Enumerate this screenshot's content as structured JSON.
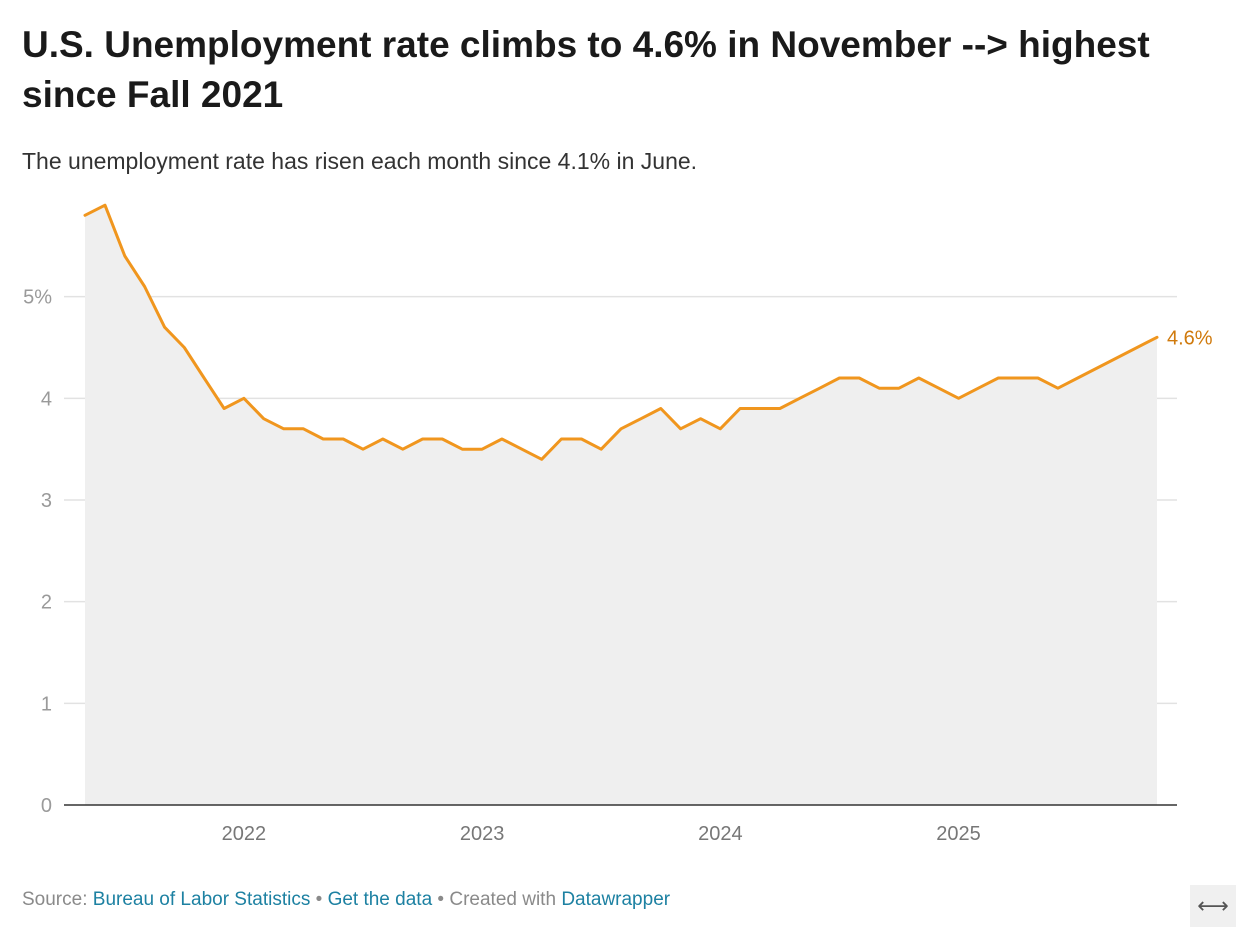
{
  "header": {
    "title": "U.S. Unemployment rate climbs to 4.6% in November --> highest since Fall 2021",
    "subtitle": "The unemployment rate has risen each month since 4.1% in June."
  },
  "footer": {
    "source_label": "Source:",
    "source_link": "Bureau of Labor Statistics",
    "separator_1": "•",
    "data_link": "Get the data",
    "separator_2": "•",
    "created_label": "Created with",
    "tool_link": "Datawrapper",
    "expand_glyph": "⟷"
  },
  "colors": {
    "line": "#f0961e",
    "area": "#efefef",
    "grid": "#e2e2e2",
    "label_text": "#d07a0c",
    "tick_text": "#9a9a9a",
    "axis": "#333333"
  },
  "chart_data": {
    "type": "area",
    "title": "U.S. Unemployment rate climbs to 4.6% in November --> highest since Fall 2021",
    "subtitle": "The unemployment rate has risen each month since 4.1% in June.",
    "xlabel": "",
    "ylabel": "",
    "ylim": [
      0,
      6
    ],
    "xlim": [
      2021.333,
      2025.833
    ],
    "yticks": [
      0,
      1,
      2,
      3,
      4,
      5
    ],
    "ytick_labels": [
      "0",
      "1",
      "2",
      "3",
      "4",
      "5%"
    ],
    "xticks": [
      2022,
      2023,
      2024,
      2025
    ],
    "xtick_labels": [
      "2022",
      "2023",
      "2024",
      "2025"
    ],
    "grid": true,
    "end_label": "4.6%",
    "series": [
      {
        "name": "Unemployment rate",
        "x": [
          2021.333,
          2021.417,
          2021.5,
          2021.583,
          2021.667,
          2021.75,
          2021.833,
          2021.917,
          2022.0,
          2022.083,
          2022.167,
          2022.25,
          2022.333,
          2022.417,
          2022.5,
          2022.583,
          2022.667,
          2022.75,
          2022.833,
          2022.917,
          2023.0,
          2023.083,
          2023.167,
          2023.25,
          2023.333,
          2023.417,
          2023.5,
          2023.583,
          2023.667,
          2023.75,
          2023.833,
          2023.917,
          2024.0,
          2024.083,
          2024.167,
          2024.25,
          2024.333,
          2024.417,
          2024.5,
          2024.583,
          2024.667,
          2024.75,
          2024.833,
          2024.917,
          2025.0,
          2025.083,
          2025.167,
          2025.25,
          2025.333,
          2025.417,
          2025.5,
          2025.833
        ],
        "values": [
          5.8,
          5.9,
          5.4,
          5.1,
          4.7,
          4.5,
          4.2,
          3.9,
          4.0,
          3.8,
          3.7,
          3.7,
          3.6,
          3.6,
          3.5,
          3.6,
          3.5,
          3.6,
          3.6,
          3.5,
          3.5,
          3.6,
          3.5,
          3.4,
          3.6,
          3.6,
          3.5,
          3.7,
          3.8,
          3.9,
          3.7,
          3.8,
          3.7,
          3.9,
          3.9,
          3.9,
          4.0,
          4.1,
          4.2,
          4.2,
          4.1,
          4.1,
          4.2,
          4.1,
          4.0,
          4.1,
          4.2,
          4.2,
          4.2,
          4.1,
          4.2,
          4.6
        ]
      }
    ]
  }
}
